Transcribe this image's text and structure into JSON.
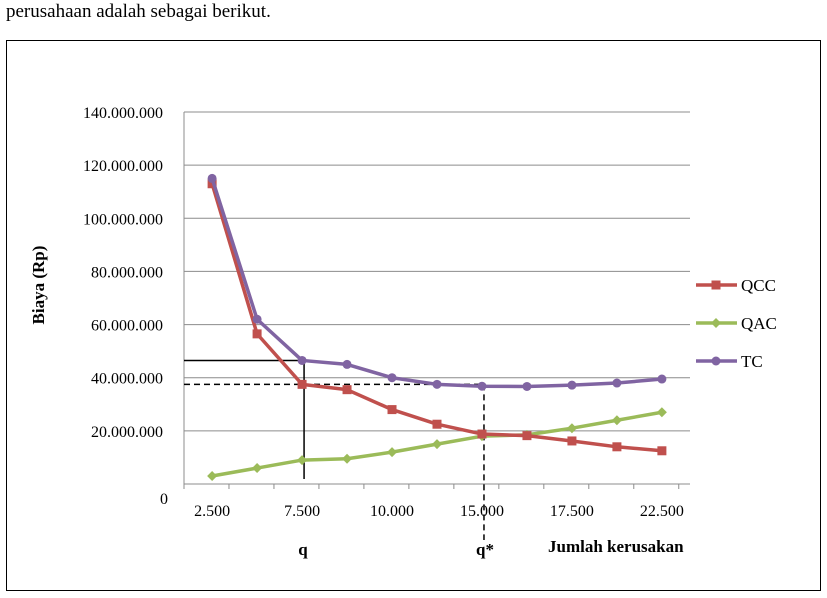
{
  "intro_text": "perusahaan adalah sebagai berikut.",
  "chart_data": {
    "type": "line",
    "ylabel": "Biaya (Rp)",
    "xlabel": "Jumlah kerusakan",
    "ylim": [
      0,
      140000000
    ],
    "xlim": [
      1250,
      23750
    ],
    "y_ticks": [
      "0",
      "20.000.000",
      "40.000.000",
      "60.000.000",
      "80.000.000",
      "100.000.000",
      "120.000.000",
      "140.000.000"
    ],
    "x_ticks": [
      "2.500",
      "7.500",
      "10.000",
      "15.000",
      "17.500",
      "22.500"
    ],
    "grid": "horizontal",
    "legend_position": "right",
    "x": [
      2500,
      4500,
      6500,
      8500,
      10500,
      12500,
      14500,
      16500,
      18500,
      20500,
      22500
    ],
    "series": [
      {
        "name": "QCC",
        "color": "#c0504d",
        "marker": "square",
        "values": [
          113000000,
          56500000,
          37500000,
          35500000,
          28000000,
          22500000,
          18800000,
          18200000,
          16200000,
          14000000,
          12500000
        ]
      },
      {
        "name": "QAC",
        "color": "#9bbb59",
        "marker": "diamond",
        "values": [
          3000000,
          6000000,
          9000000,
          9500000,
          12000000,
          15000000,
          18000000,
          18500000,
          21000000,
          24000000,
          27000000
        ]
      },
      {
        "name": "TC",
        "color": "#8064a2",
        "marker": "circle",
        "values": [
          115000000,
          62000000,
          46500000,
          45000000,
          40000000,
          37500000,
          36800000,
          36700000,
          37200000,
          38000000,
          39500000
        ]
      }
    ],
    "annotations": [
      {
        "label": "q",
        "x": 6500,
        "y_solid": 46500000,
        "style": "solid"
      },
      {
        "label": "q*",
        "x": 14500,
        "y_dashed": 37500000,
        "style": "dashed"
      }
    ]
  }
}
